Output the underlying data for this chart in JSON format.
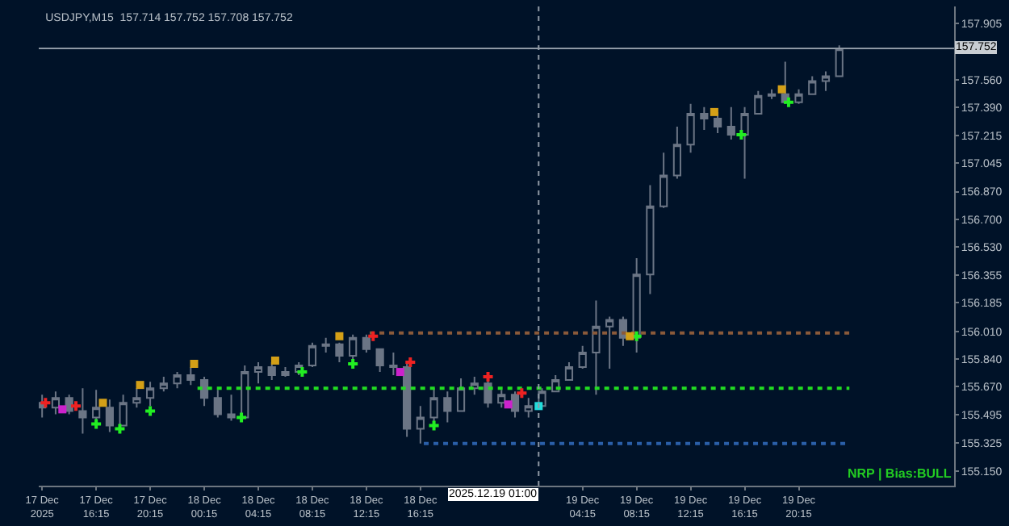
{
  "chart_data": {
    "type": "candlestick",
    "title": "USDJPY,M15  157.714 157.752 157.708 157.752",
    "color": "#6b7585",
    "x": [
      "2025-12-17T12:15",
      "2025-12-17T13:15",
      "2025-12-17T14:15",
      "2025-12-17T15:15",
      "2025-12-17T16:15",
      "2025-12-17T17:15",
      "2025-12-17T18:15",
      "2025-12-17T19:15",
      "2025-12-17T20:15",
      "2025-12-17T21:15",
      "2025-12-17T22:15",
      "2025-12-17T23:15",
      "2025-12-18T00:15",
      "2025-12-18T01:15",
      "2025-12-18T02:15",
      "2025-12-18T03:15",
      "2025-12-18T04:15",
      "2025-12-18T05:15",
      "2025-12-18T06:15",
      "2025-12-18T07:15",
      "2025-12-18T08:15",
      "2025-12-18T09:15",
      "2025-12-18T10:15",
      "2025-12-18T11:15",
      "2025-12-18T12:15",
      "2025-12-18T13:15",
      "2025-12-18T14:15",
      "2025-12-18T15:15",
      "2025-12-18T16:15",
      "2025-12-18T17:15",
      "2025-12-18T18:15",
      "2025-12-18T19:15",
      "2025-12-18T20:15",
      "2025-12-18T21:15",
      "2025-12-18T22:15",
      "2025-12-18T23:15",
      "2025-12-19T00:15",
      "2025-12-19T01:15",
      "2025-12-19T02:15",
      "2025-12-19T03:15",
      "2025-12-19T04:15",
      "2025-12-19T05:15",
      "2025-12-19T06:15",
      "2025-12-19T07:15",
      "2025-12-19T08:15",
      "2025-12-19T09:15",
      "2025-12-19T10:15",
      "2025-12-19T11:15",
      "2025-12-19T12:15",
      "2025-12-19T13:15",
      "2025-12-19T14:15",
      "2025-12-19T15:15",
      "2025-12-19T16:15",
      "2025-12-19T17:15",
      "2025-12-19T18:15",
      "2025-12-19T19:15",
      "2025-12-19T20:15",
      "2025-12-19T21:15",
      "2025-12-19T22:15",
      "2025-12-19T23:15"
    ],
    "ohlc": [
      [
        155.57,
        155.62,
        155.48,
        155.54
      ],
      [
        155.54,
        155.64,
        155.5,
        155.6
      ],
      [
        155.6,
        155.62,
        155.5,
        155.52
      ],
      [
        155.52,
        155.66,
        155.38,
        155.48
      ],
      [
        155.48,
        155.65,
        155.46,
        155.54
      ],
      [
        155.54,
        155.59,
        155.39,
        155.43
      ],
      [
        155.43,
        155.62,
        155.43,
        155.57
      ],
      [
        155.57,
        155.66,
        155.54,
        155.6
      ],
      [
        155.6,
        155.7,
        155.55,
        155.66
      ],
      [
        155.66,
        155.73,
        155.64,
        155.69
      ],
      [
        155.69,
        155.76,
        155.66,
        155.74
      ],
      [
        155.74,
        155.79,
        155.68,
        155.71
      ],
      [
        155.71,
        155.73,
        155.55,
        155.6
      ],
      [
        155.6,
        155.65,
        155.48,
        155.5
      ],
      [
        155.5,
        155.62,
        155.46,
        155.48
      ],
      [
        155.48,
        155.8,
        155.48,
        155.76
      ],
      [
        155.76,
        155.82,
        155.69,
        155.79
      ],
      [
        155.79,
        155.82,
        155.71,
        155.74
      ],
      [
        155.74,
        155.79,
        155.73,
        155.76
      ],
      [
        155.76,
        155.82,
        155.74,
        155.8
      ],
      [
        155.8,
        155.94,
        155.79,
        155.92
      ],
      [
        155.92,
        155.97,
        155.88,
        155.93
      ],
      [
        155.93,
        155.94,
        155.82,
        155.86
      ],
      [
        155.86,
        155.99,
        155.83,
        155.97
      ],
      [
        155.97,
        155.99,
        155.88,
        155.9
      ],
      [
        155.9,
        155.9,
        155.76,
        155.8
      ],
      [
        155.8,
        155.88,
        155.74,
        155.79
      ],
      [
        155.79,
        155.83,
        155.36,
        155.41
      ],
      [
        155.41,
        155.55,
        155.32,
        155.48
      ],
      [
        155.48,
        155.66,
        155.45,
        155.6
      ],
      [
        155.6,
        155.64,
        155.45,
        155.52
      ],
      [
        155.52,
        155.72,
        155.52,
        155.66
      ],
      [
        155.66,
        155.73,
        155.62,
        155.69
      ],
      [
        155.69,
        155.71,
        155.54,
        155.57
      ],
      [
        155.57,
        155.65,
        155.54,
        155.62
      ],
      [
        155.62,
        155.64,
        155.48,
        155.52
      ],
      [
        155.52,
        155.6,
        155.48,
        155.55
      ],
      [
        155.55,
        155.66,
        155.55,
        155.64
      ],
      [
        155.64,
        155.74,
        155.64,
        155.71
      ],
      [
        155.71,
        155.82,
        155.71,
        155.79
      ],
      [
        155.79,
        155.92,
        155.78,
        155.88
      ],
      [
        155.88,
        156.2,
        155.62,
        156.04
      ],
      [
        156.04,
        156.1,
        155.78,
        156.08
      ],
      [
        156.08,
        156.1,
        155.92,
        155.97
      ],
      [
        155.97,
        156.46,
        155.88,
        156.36
      ],
      [
        156.36,
        156.91,
        156.24,
        156.78
      ],
      [
        156.78,
        157.11,
        156.77,
        156.97
      ],
      [
        156.97,
        157.27,
        156.95,
        157.16
      ],
      [
        157.16,
        157.41,
        157.11,
        157.35
      ],
      [
        157.35,
        157.39,
        157.25,
        157.32
      ],
      [
        157.32,
        157.36,
        157.23,
        157.27
      ],
      [
        157.27,
        157.39,
        157.19,
        157.22
      ],
      [
        157.22,
        157.39,
        156.95,
        157.35
      ],
      [
        157.35,
        157.49,
        157.35,
        157.46
      ],
      [
        157.46,
        157.5,
        157.44,
        157.47
      ],
      [
        157.47,
        157.67,
        157.41,
        157.42
      ],
      [
        157.42,
        157.5,
        157.41,
        157.47
      ],
      [
        157.47,
        157.58,
        157.47,
        157.55
      ],
      [
        157.55,
        157.61,
        157.49,
        157.58
      ],
      [
        157.58,
        157.77,
        157.58,
        157.75
      ]
    ],
    "series": [
      {
        "type": "line",
        "color": "#22dd22",
        "line_style": "dotted",
        "x": [
          "2025-12-17T23:45",
          "2025-12-20T00:00"
        ],
        "values": [
          155.66,
          155.66
        ]
      },
      {
        "type": "line",
        "color": "#8a5a3a",
        "line_style": "dotted",
        "x": [
          "2025-12-18T12:30",
          "2025-12-20T00:00"
        ],
        "values": [
          156.0,
          156.0
        ]
      },
      {
        "type": "line",
        "color": "#2a5fa8",
        "line_style": "dotted",
        "x": [
          "2025-12-18T16:30",
          "2025-12-20T00:00"
        ],
        "values": [
          155.32,
          155.32
        ]
      },
      {
        "type": "scatter",
        "marker": "cross",
        "color": "#22ee22",
        "x": [
          "2025-12-17T16:15",
          "2025-12-17T18:00",
          "2025-12-17T20:15",
          "2025-12-18T03:00",
          "2025-12-18T07:30",
          "2025-12-18T11:15",
          "2025-12-18T17:15",
          "2025-12-19T08:15",
          "2025-12-19T16:00",
          "2025-12-19T19:30"
        ],
        "values": [
          155.44,
          155.41,
          155.52,
          155.48,
          155.76,
          155.81,
          155.43,
          155.98,
          157.22,
          157.42
        ]
      },
      {
        "type": "scatter",
        "marker": "cross",
        "color": "#ee2222",
        "x": [
          "2025-12-17T12:30",
          "2025-12-17T14:45",
          "2025-12-18T12:45",
          "2025-12-18T15:30",
          "2025-12-18T21:15",
          "2025-12-18T23:45"
        ],
        "values": [
          155.57,
          155.55,
          155.98,
          155.82,
          155.73,
          155.63
        ]
      },
      {
        "type": "scatter",
        "marker": "square",
        "color": "#d4a017",
        "x": [
          "2025-12-17T16:45",
          "2025-12-17T19:30",
          "2025-12-17T23:30",
          "2025-12-18T05:30",
          "2025-12-18T10:15",
          "2025-12-19T07:45",
          "2025-12-19T14:00",
          "2025-12-19T19:00"
        ],
        "values": [
          155.57,
          155.68,
          155.81,
          155.83,
          155.98,
          155.98,
          157.36,
          157.5
        ]
      },
      {
        "type": "scatter",
        "marker": "square",
        "color": "#cc22cc",
        "x": [
          "2025-12-17T13:45",
          "2025-12-18T14:45",
          "2025-12-18T22:45"
        ],
        "values": [
          155.53,
          155.76,
          155.56
        ]
      },
      {
        "type": "scatter",
        "marker": "square",
        "color": "#22dddd",
        "x": [
          "2025-12-19T01:00"
        ],
        "values": [
          155.55
        ]
      }
    ],
    "ref_lines": [
      {
        "axis": "y",
        "value": 157.752,
        "label": "157.752",
        "color": "#8f99a5",
        "line_style": "solid"
      },
      {
        "axis": "x",
        "value": "2025-12-19T01:00",
        "label": "2025.12.19 01:00",
        "color": "#8f99a5",
        "line_style": "dotted"
      }
    ],
    "annotations": [
      "NRP | Bias:BULL"
    ],
    "xlim": [
      "2025-12-17T12:00",
      "2025-12-20T07:45"
    ],
    "xticks": [
      {
        "value": "2025-12-17T12:15",
        "label": "17 Dec 2025"
      },
      {
        "value": "2025-12-17T16:15",
        "label": "17 Dec 16:15"
      },
      {
        "value": "2025-12-17T20:15",
        "label": "17 Dec 20:15"
      },
      {
        "value": "2025-12-18T00:15",
        "label": "18 Dec 00:15"
      },
      {
        "value": "2025-12-18T04:15",
        "label": "18 Dec 04:15"
      },
      {
        "value": "2025-12-18T08:15",
        "label": "18 Dec 08:15"
      },
      {
        "value": "2025-12-18T12:15",
        "label": "18 Dec 12:15"
      },
      {
        "value": "2025-12-18T16:15",
        "label": "18 Dec 16:15"
      },
      {
        "value": "2025-12-19T04:15",
        "label": "19 Dec 04:15"
      },
      {
        "value": "2025-12-19T08:15",
        "label": "19 Dec 08:15"
      },
      {
        "value": "2025-12-19T12:15",
        "label": "19 Dec 12:15"
      },
      {
        "value": "2025-12-19T16:15",
        "label": "19 Dec 16:15"
      },
      {
        "value": "2025-12-19T20:15",
        "label": "19 Dec 20:15"
      }
    ],
    "ylim": [
      155.06,
      158.01
    ],
    "yticks": [
      {
        "value": 157.905,
        "label": "157.905"
      },
      {
        "value": 157.56,
        "label": "157.560"
      },
      {
        "value": 157.39,
        "label": "157.390"
      },
      {
        "value": 157.215,
        "label": "157.215"
      },
      {
        "value": 157.045,
        "label": "157.045"
      },
      {
        "value": 156.87,
        "label": "156.870"
      },
      {
        "value": 156.7,
        "label": "156.700"
      },
      {
        "value": 156.53,
        "label": "156.530"
      },
      {
        "value": 156.355,
        "label": "156.355"
      },
      {
        "value": 156.185,
        "label": "156.185"
      },
      {
        "value": 156.01,
        "label": "156.010"
      },
      {
        "value": 155.84,
        "label": "155.840"
      },
      {
        "value": 155.67,
        "label": "155.670"
      },
      {
        "value": 155.495,
        "label": "155.495"
      },
      {
        "value": 155.325,
        "label": "155.325"
      },
      {
        "value": 155.15,
        "label": "155.150"
      }
    ],
    "grid": false
  }
}
